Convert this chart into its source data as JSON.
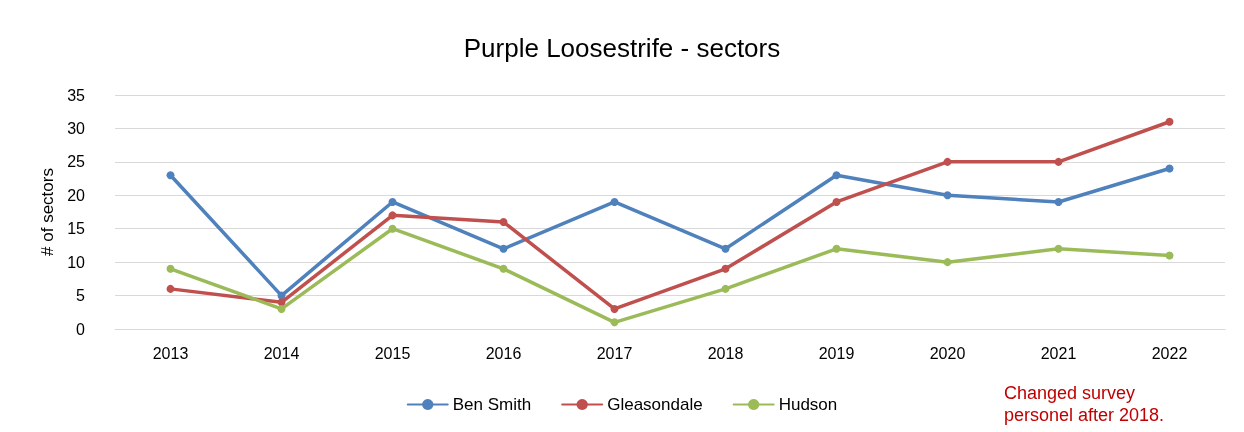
{
  "chart_data": {
    "type": "line",
    "title": "Purple Loosestrife - sectors",
    "ylabel": "# of sectors",
    "categories": [
      "2013",
      "2014",
      "2015",
      "2016",
      "2017",
      "2018",
      "2019",
      "2020",
      "2021",
      "2022"
    ],
    "series": [
      {
        "name": "Ben Smith",
        "color": "#4f81bd",
        "values": [
          23,
          5,
          19,
          12,
          19,
          12,
          23,
          20,
          19,
          24
        ]
      },
      {
        "name": "Gleasondale",
        "color": "#c0504d",
        "values": [
          6,
          4,
          17,
          16,
          3,
          9,
          19,
          25,
          25,
          31
        ]
      },
      {
        "name": "Hudson",
        "color": "#9bbb59",
        "values": [
          9,
          3,
          15,
          9,
          1,
          6,
          12,
          10,
          12,
          11
        ]
      }
    ],
    "ylim": [
      0,
      35
    ],
    "yticks": [
      0,
      5,
      10,
      15,
      20,
      25,
      30,
      35
    ],
    "grid": "y",
    "legend": "bottom",
    "marker": "circle",
    "line_style": "solid",
    "annotations": [
      "Changed survey\npersonel after 2018."
    ]
  }
}
